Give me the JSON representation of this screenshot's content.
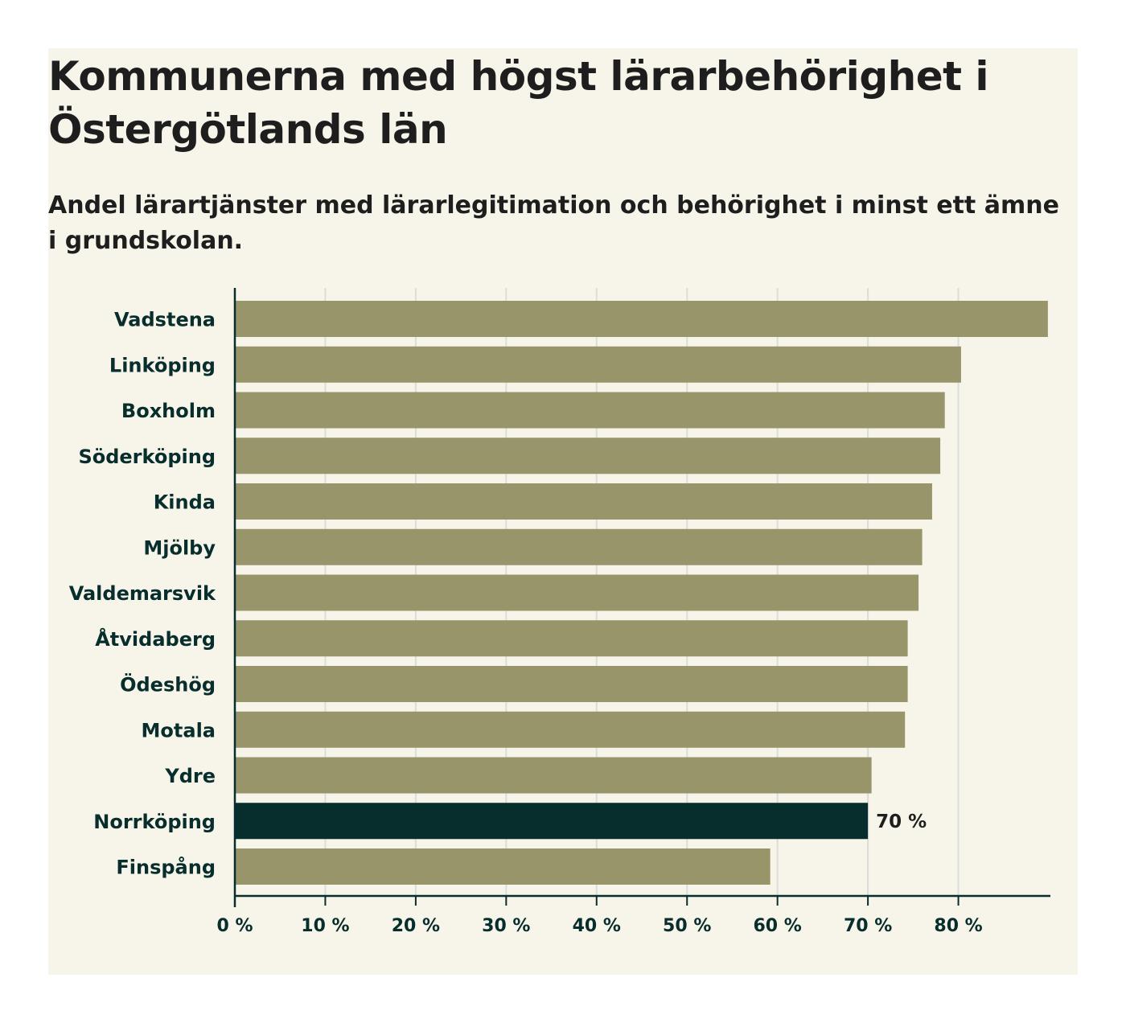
{
  "chart_data": {
    "type": "bar",
    "orientation": "horizontal",
    "title": "Kommunerna med högst lärarbehörighet i Östergötlands län",
    "subtitle": "Andel lärartjänster med lärarlegitimation och behörighet i minst ett ämne i grundskolan.",
    "categories": [
      "Vadstena",
      "Linköping",
      "Boxholm",
      "Söderköping",
      "Kinda",
      "Mjölby",
      "Valdemarsvik",
      "Åtvidaberg",
      "Ödeshög",
      "Motala",
      "Ydre",
      "Norrköping",
      "Finspång"
    ],
    "values": [
      89.9,
      80.3,
      78.5,
      78.0,
      77.1,
      76.0,
      75.6,
      74.4,
      74.4,
      74.1,
      70.4,
      70.0,
      59.2
    ],
    "highlight": "Norrköping",
    "highlight_label": "70 %",
    "xlim": [
      0,
      90
    ],
    "xticks": [
      0,
      10,
      20,
      30,
      40,
      50,
      60,
      70,
      80
    ],
    "tick_labels": [
      "0 %",
      "10 %",
      "20 %",
      "30 %",
      "40 %",
      "50 %",
      "60 %",
      "70 %",
      "80 %"
    ],
    "xlabel": "",
    "ylabel": "",
    "grid": true,
    "colors": {
      "background": "#f7f5ea",
      "bar": "#99956b",
      "highlight": "#072d2c",
      "gridline": "#dcdcdc",
      "axis": "#072d2c",
      "label": "#072d2c"
    }
  }
}
